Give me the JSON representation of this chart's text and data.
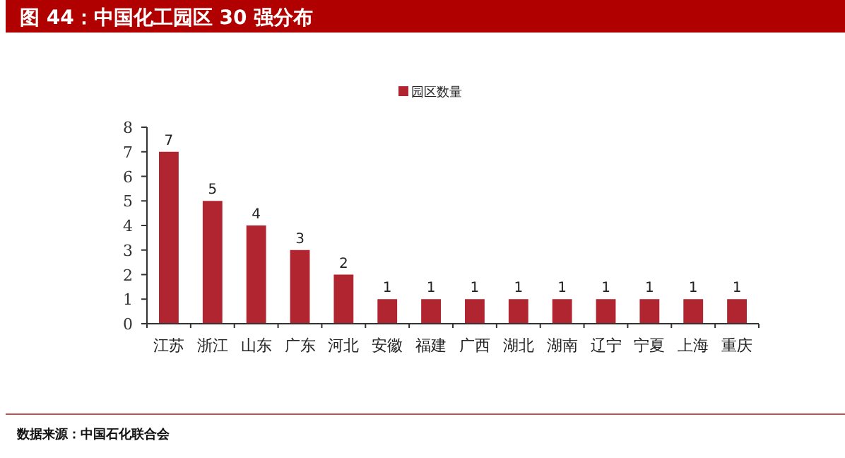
{
  "chart_data": {
    "type": "bar",
    "title": "图 44：中国化工园区 30 强分布",
    "categories": [
      "江苏",
      "浙江",
      "山东",
      "广东",
      "河北",
      "安徽",
      "福建",
      "广西",
      "湖北",
      "湖南",
      "辽宁",
      "宁夏",
      "上海",
      "重庆"
    ],
    "series": [
      {
        "name": "园区数量",
        "color": "#b0252f",
        "values": [
          7,
          5,
          4,
          3,
          2,
          1,
          1,
          1,
          1,
          1,
          1,
          1,
          1,
          1
        ]
      }
    ],
    "ylim": [
      0,
      8
    ],
    "yticks": [
      0,
      1,
      2,
      3,
      4,
      5,
      6,
      7,
      8
    ],
    "data_labels": true,
    "legend": "top",
    "grid": false,
    "annotations": [
      "数据来源：中国石化联合会"
    ]
  }
}
